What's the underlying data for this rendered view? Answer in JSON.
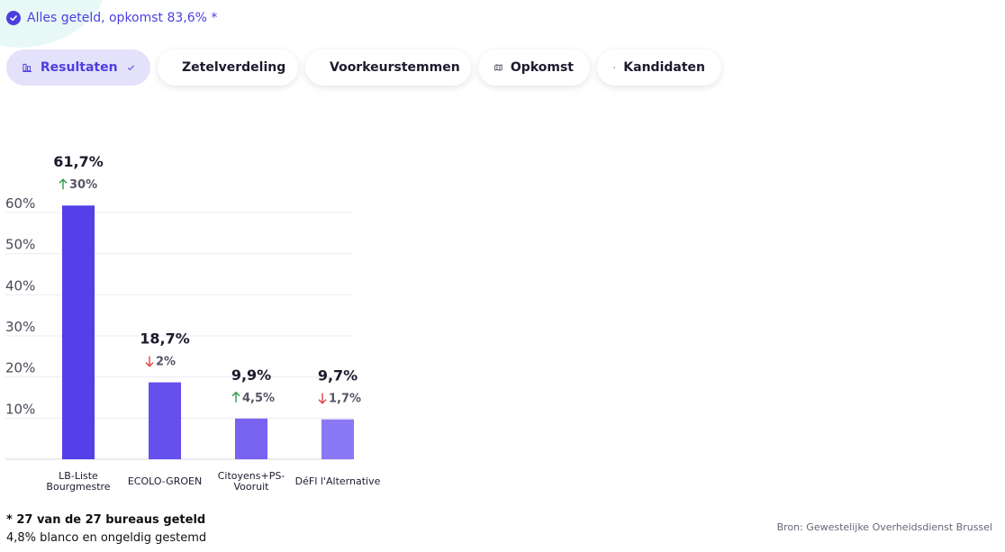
{
  "status": {
    "text": "Alles geteld, opkomst 83,6% *"
  },
  "tabs": [
    {
      "label": "Resultaten",
      "icon": "bar-chart-icon",
      "active": true
    },
    {
      "label": "Zetelverdeling",
      "icon": "circles-icon"
    },
    {
      "label": "Voorkeurstemmen",
      "icon": "people-icon"
    },
    {
      "label": "Opkomst",
      "icon": "map-icon"
    },
    {
      "label": "Kandidaten",
      "icon": "list-icon"
    }
  ],
  "chart_data": {
    "type": "bar",
    "categories": [
      [
        "LB-Liste",
        "Bourgmestre"
      ],
      [
        "ECOLO-GROEN"
      ],
      [
        "Citoyens+PS-",
        "Vooruit"
      ],
      [
        "DéFI l'Alternative"
      ]
    ],
    "values": [
      61.7,
      18.7,
      9.9,
      9.7
    ],
    "value_labels": [
      "61,7%",
      "18,7%",
      "9,9%",
      "9,7%"
    ],
    "changes": [
      {
        "dir": "up",
        "text": "30%"
      },
      {
        "dir": "down",
        "text": "2%"
      },
      {
        "dir": "up",
        "text": "4,5%"
      },
      {
        "dir": "down",
        "text": "1,7%"
      }
    ],
    "bar_colors": [
      "#5340ea",
      "#6550ee",
      "#7863f1",
      "#8b78f4"
    ],
    "up_color": "#2e9a48",
    "down_color": "#e0443e",
    "yticks": [
      10,
      20,
      30,
      40,
      50,
      60
    ],
    "ytick_labels": [
      "10%",
      "20%",
      "30%",
      "40%",
      "50%",
      "60%"
    ],
    "ylim": [
      0,
      60
    ],
    "grid": true
  },
  "footnote": {
    "counted": "* 27 van de 27 bureaus geteld",
    "blank": "4,8% blanco en ongeldig gestemd"
  },
  "source": "Bron: Gewestelijke Overheidsdienst Brussel"
}
